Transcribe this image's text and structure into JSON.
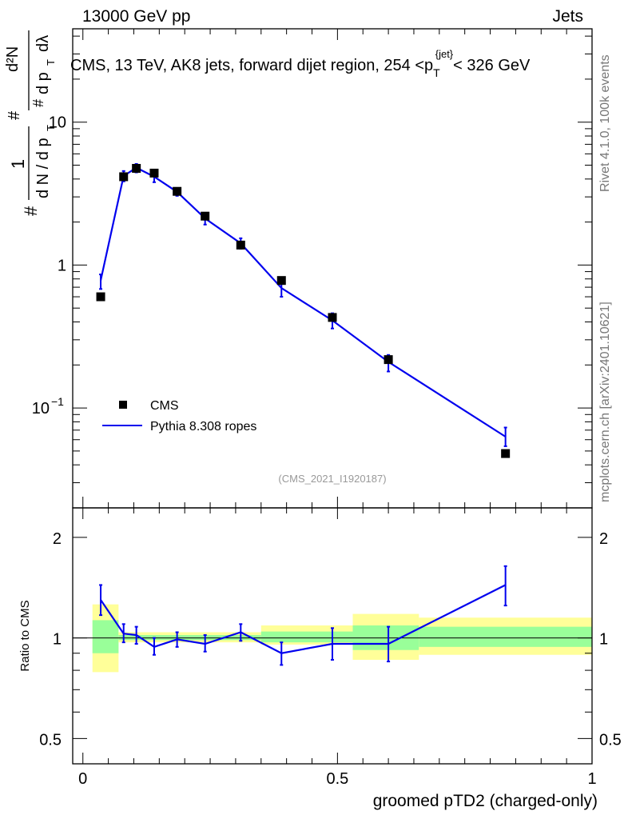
{
  "header": {
    "left": "13000 GeV pp",
    "right": "Jets"
  },
  "side_labels": {
    "rivet": "Rivet 4.1.0,  100k events",
    "mcplots": "mcplots.cern.ch [arXiv:2401.10621]"
  },
  "watermark": "(CMS_2021_I1920187)",
  "chart_data": [
    {
      "type": "line",
      "panel": "main",
      "title_prefix": "CMS, 13 TeV, AK8 jets, forward dijet region, 254 <p",
      "title_sub": "T",
      "title_sup": "{jet}",
      "title_suffix": "< 326 GeV",
      "ylabel": "#  1/(dN/dp_T)  #  d²N/(dp_T dλ)",
      "ylabel_parts": {
        "hash": "#",
        "one": "1",
        "den": "d N / d p",
        "num": "d²N",
        "den2": "d p",
        "lambda": "dλ",
        "T": "T"
      },
      "yscale": "log",
      "ylim": [
        0.02,
        45
      ],
      "xlim": [
        -0.02,
        1.0
      ],
      "y_ticks": [
        {
          "value": 10,
          "label": "10"
        },
        {
          "value": 1,
          "label": "1"
        },
        {
          "value": 0.1,
          "label": "10",
          "exp": "−1"
        }
      ],
      "legend": {
        "position": "lower-left",
        "cms": "CMS",
        "pythia": "Pythia 8.308 ropes"
      },
      "series": [
        {
          "name": "CMS",
          "style": "marker",
          "color": "#000000",
          "x": [
            0.035,
            0.08,
            0.105,
            0.14,
            0.185,
            0.24,
            0.31,
            0.39,
            0.49,
            0.6,
            0.83
          ],
          "values": [
            0.6,
            4.15,
            4.75,
            4.4,
            3.28,
            2.2,
            1.38,
            0.78,
            0.43,
            0.218,
            0.048
          ]
        },
        {
          "name": "Pythia 8.308 ropes",
          "style": "line",
          "color": "#0000ee",
          "x": [
            0.035,
            0.08,
            0.105,
            0.14,
            0.185,
            0.24,
            0.31,
            0.39,
            0.49,
            0.6,
            0.83
          ],
          "values": [
            0.78,
            4.2,
            4.8,
            4.15,
            3.25,
            2.12,
            1.42,
            0.69,
            0.41,
            0.21,
            0.063
          ],
          "err_lo": [
            0.68,
            3.85,
            4.45,
            3.8,
            3.05,
            1.92,
            1.3,
            0.6,
            0.36,
            0.18,
            0.054
          ],
          "err_hi": [
            0.86,
            4.55,
            5.1,
            4.5,
            3.45,
            2.32,
            1.54,
            0.78,
            0.46,
            0.235,
            0.073
          ]
        }
      ]
    },
    {
      "type": "line",
      "panel": "ratio",
      "ylabel": "Ratio to CMS",
      "xlabel": "groomed pTD2 (charged-only)",
      "yscale": "log",
      "ylim": [
        0.42,
        2.45
      ],
      "xlim": [
        -0.02,
        1.0
      ],
      "y_ticks": [
        {
          "value": 2,
          "label": "2"
        },
        {
          "value": 1,
          "label": "1"
        },
        {
          "value": 0.5,
          "label": "0.5"
        }
      ],
      "x_ticks": [
        {
          "value": 0,
          "label": "0"
        },
        {
          "value": 0.5,
          "label": "0.5"
        },
        {
          "value": 1,
          "label": "1"
        }
      ],
      "bands": [
        {
          "x0": 0.0,
          "x1": 0.07,
          "y_lo_outer": 0.79,
          "y_hi_outer": 1.26,
          "y_lo_inner": 0.9,
          "y_hi_inner": 1.13
        },
        {
          "x0": 0.07,
          "x1": 0.35,
          "y_lo_outer": 0.97,
          "y_hi_outer": 1.04,
          "y_lo_inner": 0.985,
          "y_hi_inner": 1.02
        },
        {
          "x0": 0.35,
          "x1": 0.53,
          "y_lo_outer": 0.955,
          "y_hi_outer": 1.09,
          "y_lo_inner": 0.97,
          "y_hi_inner": 1.045
        },
        {
          "x0": 0.53,
          "x1": 0.66,
          "y_lo_outer": 0.86,
          "y_hi_outer": 1.18,
          "y_lo_inner": 0.92,
          "y_hi_inner": 1.09
        },
        {
          "x0": 0.66,
          "x1": 1.0,
          "y_lo_outer": 0.89,
          "y_hi_outer": 1.15,
          "y_lo_inner": 0.94,
          "y_hi_inner": 1.08
        }
      ],
      "band_colors": {
        "outer": "#ffff99",
        "inner": "#99ff99"
      },
      "series": [
        {
          "name": "Pythia 8.308 ropes / CMS",
          "color": "#0000ee",
          "x": [
            0.035,
            0.08,
            0.105,
            0.14,
            0.185,
            0.24,
            0.31,
            0.39,
            0.49,
            0.6,
            0.83
          ],
          "values": [
            1.3,
            1.03,
            1.02,
            0.94,
            0.99,
            0.96,
            1.04,
            0.9,
            0.96,
            0.96,
            1.44
          ],
          "err_lo": [
            1.17,
            0.97,
            0.96,
            0.89,
            0.94,
            0.91,
            0.98,
            0.83,
            0.86,
            0.85,
            1.25
          ],
          "err_hi": [
            1.44,
            1.1,
            1.08,
            1.0,
            1.04,
            1.02,
            1.1,
            0.97,
            1.07,
            1.08,
            1.64
          ]
        }
      ]
    }
  ]
}
